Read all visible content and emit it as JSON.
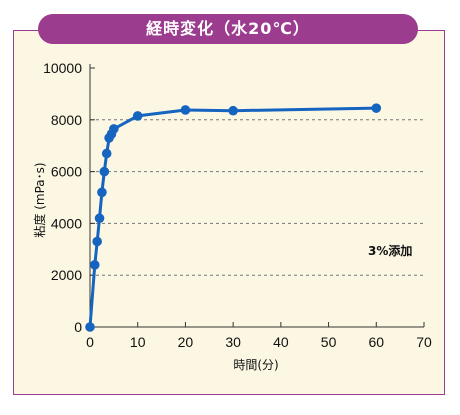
{
  "chart_data": {
    "type": "line",
    "title": "経時変化（水20℃）",
    "xlabel": "時間(分)",
    "ylabel": "粘度 (mPa･s)",
    "xlim": [
      0,
      70
    ],
    "ylim": [
      0,
      10000
    ],
    "x_ticks": [
      "0",
      "10",
      "20",
      "30",
      "40",
      "50",
      "60",
      "70"
    ],
    "y_ticks": [
      "0",
      "2000",
      "4000",
      "6000",
      "8000",
      "10000"
    ],
    "grid": "horizontal dashed at 2000, 4000, 6000, 8000",
    "annotation": "3%添加",
    "series": [
      {
        "x": [
          0,
          1,
          1.5,
          2,
          2.5,
          3,
          3.5,
          4,
          4.5,
          5,
          10,
          20,
          30,
          60
        ],
        "y": [
          0,
          2400,
          3300,
          4200,
          5200,
          6000,
          6700,
          7300,
          7450,
          7650,
          8150,
          8380,
          8350,
          8450
        ]
      }
    ],
    "colors": {
      "line": "#1565c0",
      "marker": "#1565c0",
      "frame": "#9b3c8e",
      "panel": "#fcf7e3"
    }
  }
}
